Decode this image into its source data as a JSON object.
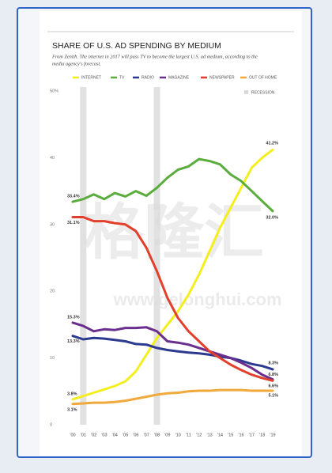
{
  "chart_data": {
    "type": "line",
    "title": "SHARE OF U.S. AD SPENDING BY MEDIUM",
    "subtitle": [
      "From Zenith. The internet in 2017 will pass TV to become the largest U.S. ad medium, according to the",
      "media agency's forecast."
    ],
    "watermark": {
      "text": "格隆汇",
      "url": "www.gelonghui.com"
    },
    "categories": [
      "'00",
      "'01",
      "'02",
      "'03",
      "'04",
      "'05",
      "'06",
      "'07",
      "'08",
      "'09",
      "'10",
      "'11",
      "'12",
      "'13",
      "'14",
      "'15",
      "'16",
      "'17",
      "'18",
      "'19"
    ],
    "ylim": [
      0,
      50
    ],
    "yticks": [
      0,
      10,
      20,
      30,
      40,
      {
        "value": 50,
        "label": "50%"
      }
    ],
    "grid": false,
    "recession": {
      "name": "RECESSION",
      "color": "#d9d9d9",
      "categories": [
        "'01",
        "'08"
      ]
    },
    "series": [
      {
        "name": "INTERNET",
        "color": "#f4ee1e",
        "values": [
          3.8,
          4.3,
          4.8,
          5.3,
          5.8,
          6.5,
          8.0,
          10.5,
          13,
          15,
          17,
          19.5,
          22.5,
          26,
          29.5,
          32.5,
          35.5,
          38.5,
          40,
          41.2
        ],
        "value_labels": [
          "3.8%",
          null,
          null,
          null,
          null,
          null,
          null,
          null,
          null,
          null,
          null,
          null,
          null,
          null,
          null,
          null,
          null,
          null,
          null,
          "41.2%"
        ]
      },
      {
        "name": "TV",
        "color": "#5aac3c",
        "values": [
          33.4,
          33.8,
          34.5,
          33.8,
          34.7,
          34.2,
          35,
          34.3,
          35.5,
          37,
          38.2,
          38.7,
          39.8,
          39.5,
          39,
          37.5,
          36.5,
          35,
          33.5,
          32.0
        ],
        "value_labels": [
          "33.4%",
          null,
          null,
          null,
          null,
          null,
          null,
          null,
          null,
          null,
          null,
          null,
          null,
          null,
          null,
          null,
          null,
          null,
          null,
          "32.0%"
        ]
      },
      {
        "name": "RADIO",
        "color": "#2b3a8f",
        "values": [
          13.3,
          12.8,
          13.0,
          12.9,
          12.7,
          12.5,
          12.1,
          12.0,
          11.5,
          11.2,
          11,
          10.8,
          10.7,
          10.5,
          10.2,
          10,
          9.6,
          9.1,
          8.8,
          8.3
        ],
        "value_labels": [
          "13.3%",
          null,
          null,
          null,
          null,
          null,
          null,
          null,
          null,
          null,
          null,
          null,
          null,
          null,
          null,
          null,
          null,
          null,
          null,
          "8.3%"
        ]
      },
      {
        "name": "MAGAZINE",
        "color": "#6a2f8e",
        "values": [
          15.3,
          14.8,
          14.0,
          14.3,
          14.2,
          14.5,
          14.5,
          14.6,
          14.0,
          12.5,
          12.3,
          12.0,
          11.5,
          11,
          10.5,
          10,
          9.3,
          8.5,
          7.5,
          6.8
        ],
        "value_labels": [
          "15.3%",
          null,
          null,
          null,
          null,
          null,
          null,
          null,
          null,
          null,
          null,
          null,
          null,
          null,
          null,
          null,
          null,
          null,
          null,
          "6.8%"
        ]
      },
      {
        "name": "NEWSPAPER",
        "color": "#e2402c",
        "values": [
          31.1,
          31.1,
          30.5,
          30.5,
          30.2,
          30.0,
          29.0,
          26.5,
          23,
          19,
          16,
          14,
          12.5,
          11,
          10,
          9,
          8.2,
          7.5,
          7,
          6.6
        ],
        "value_labels": [
          "31.1%",
          null,
          null,
          null,
          null,
          null,
          null,
          null,
          null,
          null,
          null,
          null,
          null,
          null,
          null,
          null,
          null,
          null,
          null,
          "6.6%"
        ]
      },
      {
        "name": "OUT OF HOME",
        "color": "#f2a93b",
        "values": [
          3.1,
          3.2,
          3.3,
          3.3,
          3.4,
          3.6,
          3.9,
          4.2,
          4.5,
          4.7,
          4.8,
          5.0,
          5.1,
          5.1,
          5.2,
          5.2,
          5.2,
          5.1,
          5.1,
          5.1
        ],
        "value_labels": [
          "3.1%",
          null,
          null,
          null,
          null,
          null,
          null,
          null,
          null,
          null,
          null,
          null,
          null,
          null,
          null,
          null,
          null,
          null,
          null,
          "5.1%"
        ]
      }
    ]
  }
}
